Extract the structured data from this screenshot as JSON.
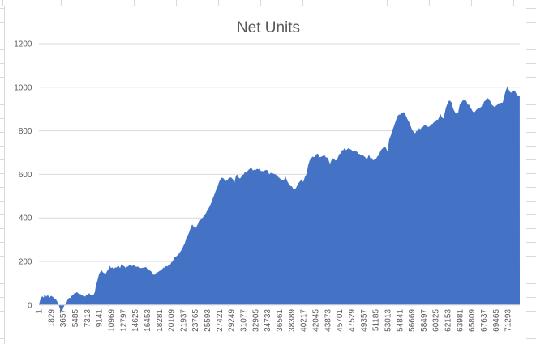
{
  "chart_data": {
    "type": "area",
    "title": "Net Units",
    "series_name": "Net Units",
    "legend": "none",
    "grid": true,
    "color": "#4472C4",
    "gridline_color": "#D9D9D9",
    "axis_text_color": "#595959",
    "title_color": "#595959",
    "border_color": "#D9D9D9",
    "background": "#FFFFFF",
    "x_max": 73121,
    "x_axis": {
      "tick_interval": 1828,
      "ticks": [
        "1",
        "1829",
        "3657",
        "5485",
        "7313",
        "9141",
        "10969",
        "12797",
        "14625",
        "16453",
        "18281",
        "20109",
        "21937",
        "23765",
        "25593",
        "27421",
        "29249",
        "31077",
        "32905",
        "34733",
        "36561",
        "38389",
        "40217",
        "42045",
        "43873",
        "45701",
        "47529",
        "49357",
        "51185",
        "53013",
        "54841",
        "56669",
        "58497",
        "60325",
        "62153",
        "63981",
        "65809",
        "67637",
        "69465",
        "71293"
      ]
    },
    "y_axis": {
      "min": 0,
      "max": 1200,
      "ticks": [
        0,
        200,
        400,
        600,
        800,
        1000,
        1200
      ]
    },
    "points": [
      [
        1,
        0
      ],
      [
        120,
        15
      ],
      [
        250,
        28
      ],
      [
        490,
        40
      ],
      [
        740,
        35
      ],
      [
        860,
        50
      ],
      [
        1110,
        38
      ],
      [
        1360,
        44
      ],
      [
        1600,
        34
      ],
      [
        1850,
        42
      ],
      [
        2100,
        38
      ],
      [
        2340,
        30
      ],
      [
        2590,
        25
      ],
      [
        2840,
        12
      ],
      [
        2960,
        5
      ],
      [
        3080,
        -8
      ],
      [
        3330,
        -28
      ],
      [
        3580,
        -25
      ],
      [
        3700,
        -12
      ],
      [
        3950,
        2
      ],
      [
        4190,
        12
      ],
      [
        4560,
        32
      ],
      [
        4930,
        40
      ],
      [
        5180,
        46
      ],
      [
        5550,
        55
      ],
      [
        5800,
        58
      ],
      [
        6170,
        50
      ],
      [
        6410,
        48
      ],
      [
        6780,
        42
      ],
      [
        7030,
        40
      ],
      [
        7400,
        48
      ],
      [
        7640,
        52
      ],
      [
        8010,
        45
      ],
      [
        8260,
        46
      ],
      [
        8510,
        60
      ],
      [
        8630,
        85
      ],
      [
        8880,
        110
      ],
      [
        9120,
        140
      ],
      [
        9490,
        160
      ],
      [
        9740,
        150
      ],
      [
        10110,
        140
      ],
      [
        10360,
        155
      ],
      [
        10730,
        180
      ],
      [
        10970,
        170
      ],
      [
        11340,
        165
      ],
      [
        11590,
        172
      ],
      [
        11960,
        178
      ],
      [
        12330,
        170
      ],
      [
        12580,
        188
      ],
      [
        12820,
        180
      ],
      [
        13190,
        170
      ],
      [
        13560,
        178
      ],
      [
        13810,
        185
      ],
      [
        14180,
        178
      ],
      [
        14430,
        182
      ],
      [
        14800,
        175
      ],
      [
        15040,
        178
      ],
      [
        15410,
        170
      ],
      [
        15660,
        168
      ],
      [
        16030,
        172
      ],
      [
        16280,
        175
      ],
      [
        16650,
        162
      ],
      [
        16890,
        158
      ],
      [
        17260,
        145
      ],
      [
        17510,
        137
      ],
      [
        17880,
        148
      ],
      [
        18130,
        152
      ],
      [
        18500,
        160
      ],
      [
        18740,
        165
      ],
      [
        19110,
        172
      ],
      [
        19360,
        178
      ],
      [
        19730,
        182
      ],
      [
        19980,
        188
      ],
      [
        20340,
        200
      ],
      [
        20590,
        218
      ],
      [
        20960,
        225
      ],
      [
        21210,
        232
      ],
      [
        21580,
        248
      ],
      [
        21820,
        262
      ],
      [
        22190,
        285
      ],
      [
        22440,
        310
      ],
      [
        22810,
        330
      ],
      [
        23060,
        355
      ],
      [
        23300,
        370
      ],
      [
        23550,
        360
      ],
      [
        23800,
        352
      ],
      [
        24040,
        365
      ],
      [
        24290,
        380
      ],
      [
        24660,
        395
      ],
      [
        24910,
        402
      ],
      [
        25280,
        415
      ],
      [
        25520,
        430
      ],
      [
        25890,
        448
      ],
      [
        26140,
        465
      ],
      [
        26510,
        495
      ],
      [
        26760,
        515
      ],
      [
        27130,
        540
      ],
      [
        27370,
        562
      ],
      [
        27620,
        578
      ],
      [
        27990,
        585
      ],
      [
        28240,
        575
      ],
      [
        28610,
        572
      ],
      [
        28850,
        582
      ],
      [
        29220,
        585
      ],
      [
        29470,
        578
      ],
      [
        29720,
        562
      ],
      [
        29960,
        595
      ],
      [
        30210,
        600
      ],
      [
        30450,
        580
      ],
      [
        30700,
        585
      ],
      [
        31070,
        598
      ],
      [
        31320,
        610
      ],
      [
        31690,
        615
      ],
      [
        31930,
        622
      ],
      [
        32300,
        630
      ],
      [
        32550,
        618
      ],
      [
        32920,
        620
      ],
      [
        33170,
        625
      ],
      [
        33540,
        628
      ],
      [
        33780,
        615
      ],
      [
        34150,
        612
      ],
      [
        34400,
        618
      ],
      [
        34770,
        620
      ],
      [
        35020,
        600
      ],
      [
        35260,
        608
      ],
      [
        35510,
        605
      ],
      [
        35760,
        602
      ],
      [
        36000,
        600
      ],
      [
        36370,
        588
      ],
      [
        36620,
        582
      ],
      [
        36870,
        575
      ],
      [
        37240,
        572
      ],
      [
        37480,
        592
      ],
      [
        37730,
        570
      ],
      [
        37980,
        558
      ],
      [
        38220,
        548
      ],
      [
        38470,
        545
      ],
      [
        38710,
        532
      ],
      [
        38960,
        530
      ],
      [
        39210,
        545
      ],
      [
        39450,
        558
      ],
      [
        39700,
        570
      ],
      [
        39950,
        578
      ],
      [
        40190,
        565
      ],
      [
        40440,
        588
      ],
      [
        40690,
        600
      ],
      [
        40930,
        640
      ],
      [
        41180,
        665
      ],
      [
        41550,
        682
      ],
      [
        41920,
        680
      ],
      [
        42170,
        690
      ],
      [
        42410,
        695
      ],
      [
        42660,
        678
      ],
      [
        42910,
        680
      ],
      [
        43150,
        685
      ],
      [
        43400,
        688
      ],
      [
        43650,
        678
      ],
      [
        44020,
        668
      ],
      [
        44260,
        648
      ],
      [
        44630,
        675
      ],
      [
        44880,
        670
      ],
      [
        45250,
        665
      ],
      [
        45490,
        680
      ],
      [
        45860,
        695
      ],
      [
        46110,
        710
      ],
      [
        46480,
        722
      ],
      [
        46730,
        712
      ],
      [
        47100,
        720
      ],
      [
        47340,
        715
      ],
      [
        47710,
        706
      ],
      [
        47960,
        712
      ],
      [
        48330,
        705
      ],
      [
        48580,
        695
      ],
      [
        48950,
        688
      ],
      [
        49320,
        685
      ],
      [
        49560,
        682
      ],
      [
        49810,
        672
      ],
      [
        50180,
        690
      ],
      [
        50430,
        672
      ],
      [
        50800,
        665
      ],
      [
        51040,
        668
      ],
      [
        51410,
        680
      ],
      [
        51660,
        688
      ],
      [
        52030,
        712
      ],
      [
        52280,
        720
      ],
      [
        52520,
        730
      ],
      [
        52770,
        722
      ],
      [
        53020,
        705
      ],
      [
        53260,
        760
      ],
      [
        53510,
        780
      ],
      [
        53880,
        812
      ],
      [
        54250,
        845
      ],
      [
        54500,
        868
      ],
      [
        54740,
        875
      ],
      [
        55110,
        880
      ],
      [
        55360,
        885
      ],
      [
        55730,
        875
      ],
      [
        55970,
        858
      ],
      [
        56340,
        838
      ],
      [
        56710,
        808
      ],
      [
        56960,
        795
      ],
      [
        57210,
        788
      ],
      [
        57580,
        800
      ],
      [
        57820,
        812
      ],
      [
        58190,
        815
      ],
      [
        58440,
        820
      ],
      [
        58810,
        825
      ],
      [
        59060,
        818
      ],
      [
        59430,
        822
      ],
      [
        59670,
        830
      ],
      [
        60040,
        838
      ],
      [
        60290,
        845
      ],
      [
        60660,
        850
      ],
      [
        60910,
        865
      ],
      [
        61030,
        880
      ],
      [
        61280,
        862
      ],
      [
        61520,
        858
      ],
      [
        61890,
        905
      ],
      [
        62140,
        925
      ],
      [
        62510,
        940
      ],
      [
        62760,
        930
      ],
      [
        63130,
        892
      ],
      [
        63500,
        878
      ],
      [
        63740,
        882
      ],
      [
        63990,
        920
      ],
      [
        64360,
        935
      ],
      [
        64600,
        945
      ],
      [
        64980,
        938
      ],
      [
        65220,
        920
      ],
      [
        65590,
        908
      ],
      [
        65960,
        890
      ],
      [
        66210,
        885
      ],
      [
        66450,
        895
      ],
      [
        66820,
        900
      ],
      [
        67070,
        905
      ],
      [
        67440,
        912
      ],
      [
        67690,
        935
      ],
      [
        68060,
        948
      ],
      [
        68300,
        950
      ],
      [
        68550,
        940
      ],
      [
        68800,
        922
      ],
      [
        69040,
        915
      ],
      [
        69290,
        910
      ],
      [
        69660,
        920
      ],
      [
        69910,
        925
      ],
      [
        70280,
        928
      ],
      [
        70520,
        930
      ],
      [
        70770,
        960
      ],
      [
        71020,
        990
      ],
      [
        71260,
        1005
      ],
      [
        71510,
        985
      ],
      [
        71760,
        975
      ],
      [
        72000,
        978
      ],
      [
        72370,
        985
      ],
      [
        72620,
        968
      ],
      [
        72870,
        962
      ],
      [
        73111,
        960
      ]
    ]
  }
}
